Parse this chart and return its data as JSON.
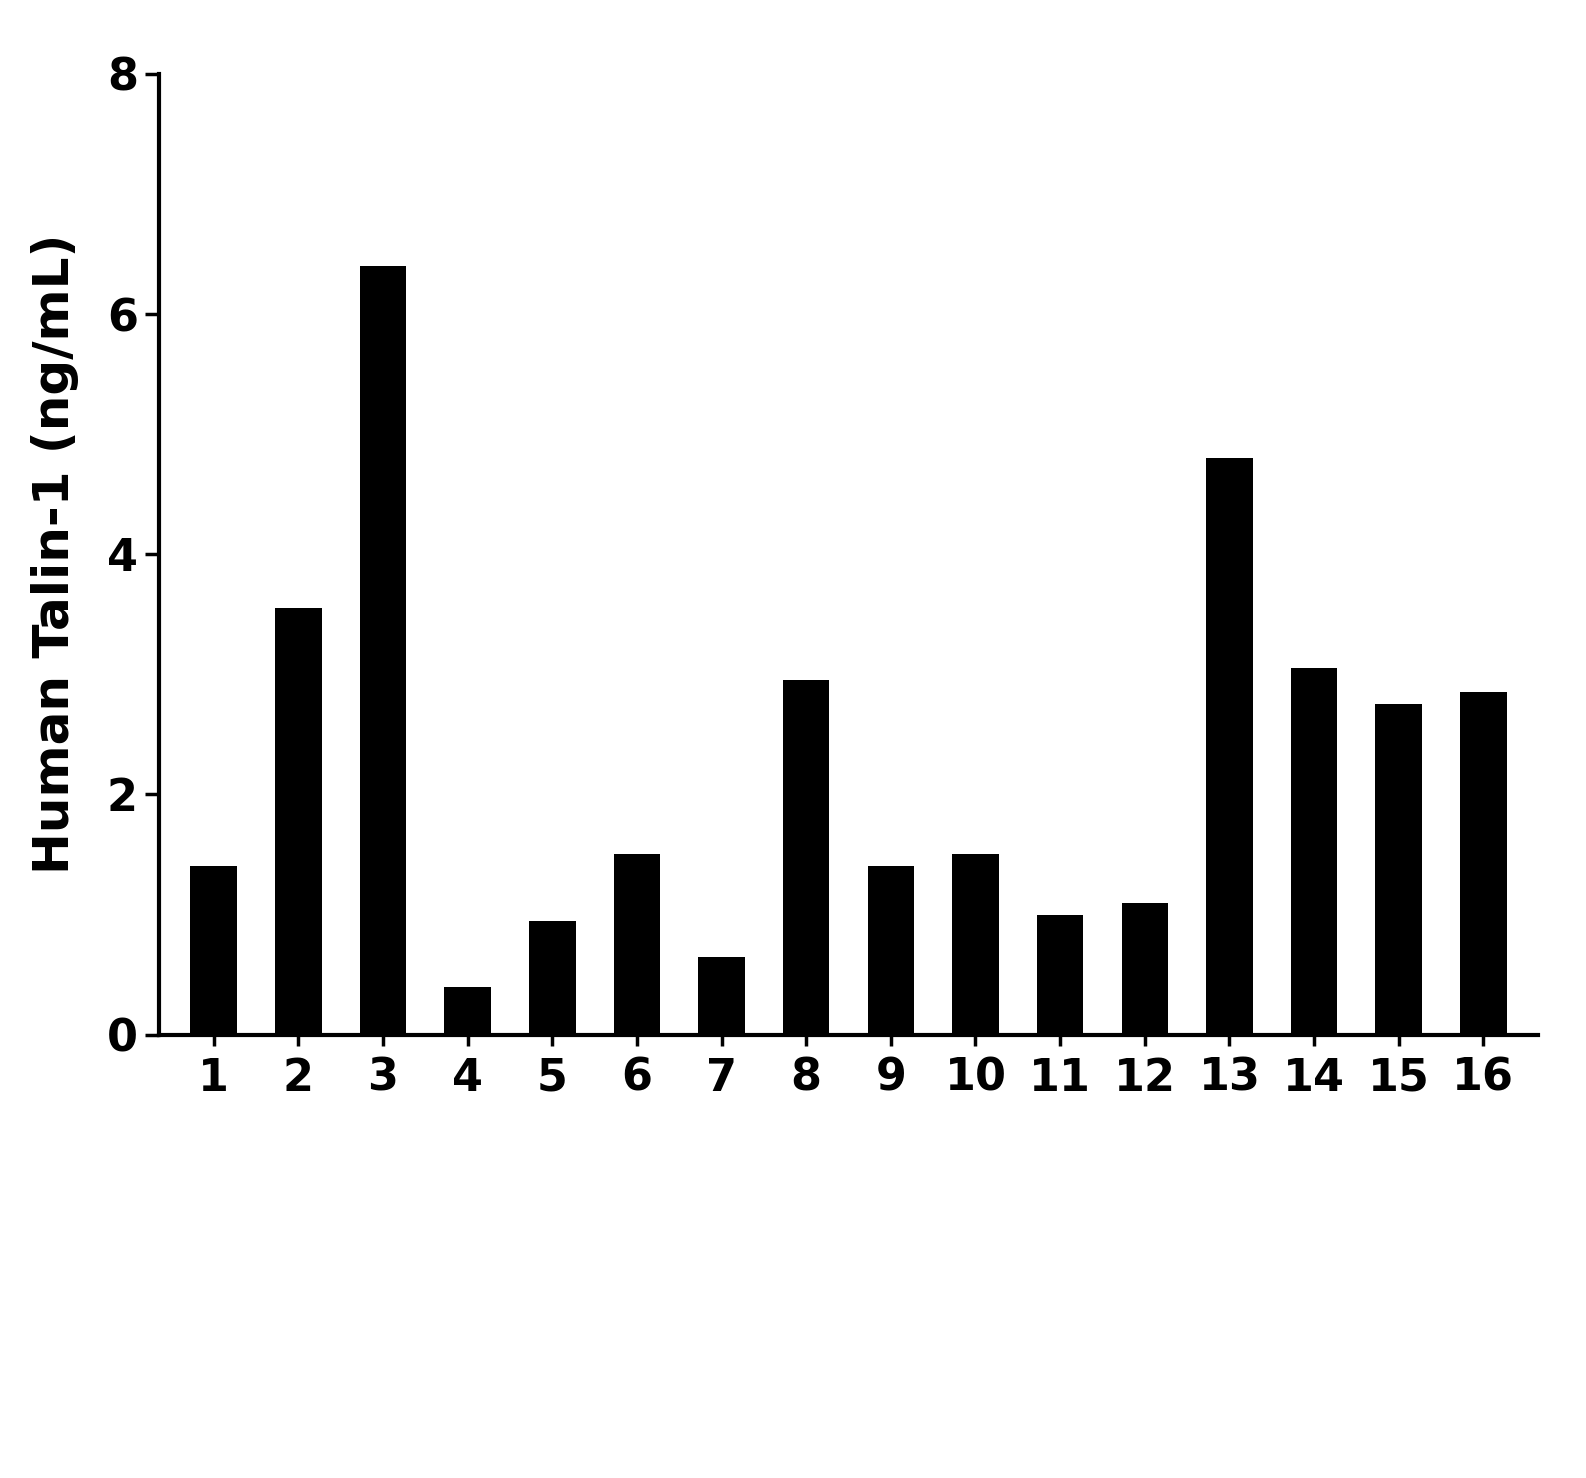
{
  "categories": [
    "1",
    "2",
    "3",
    "4",
    "5",
    "6",
    "7",
    "8",
    "9",
    "10",
    "11",
    "12",
    "13",
    "14",
    "15",
    "16"
  ],
  "values": [
    1.4,
    3.55,
    6.4,
    0.4,
    0.95,
    1.5,
    0.65,
    2.95,
    1.4,
    1.5,
    1.0,
    1.1,
    4.8,
    3.05,
    2.75,
    2.85
  ],
  "bar_color": "#000000",
  "ylabel": "Human Talin-1 (ng/mL)",
  "ylim": [
    0,
    8
  ],
  "yticks": [
    0,
    2,
    4,
    6,
    8
  ],
  "background_color": "#ffffff",
  "bar_width": 0.55,
  "ylabel_fontsize": 36,
  "tick_fontsize": 32,
  "spine_linewidth": 3.0,
  "figsize": [
    15.86,
    14.78
  ],
  "dpi": 100
}
